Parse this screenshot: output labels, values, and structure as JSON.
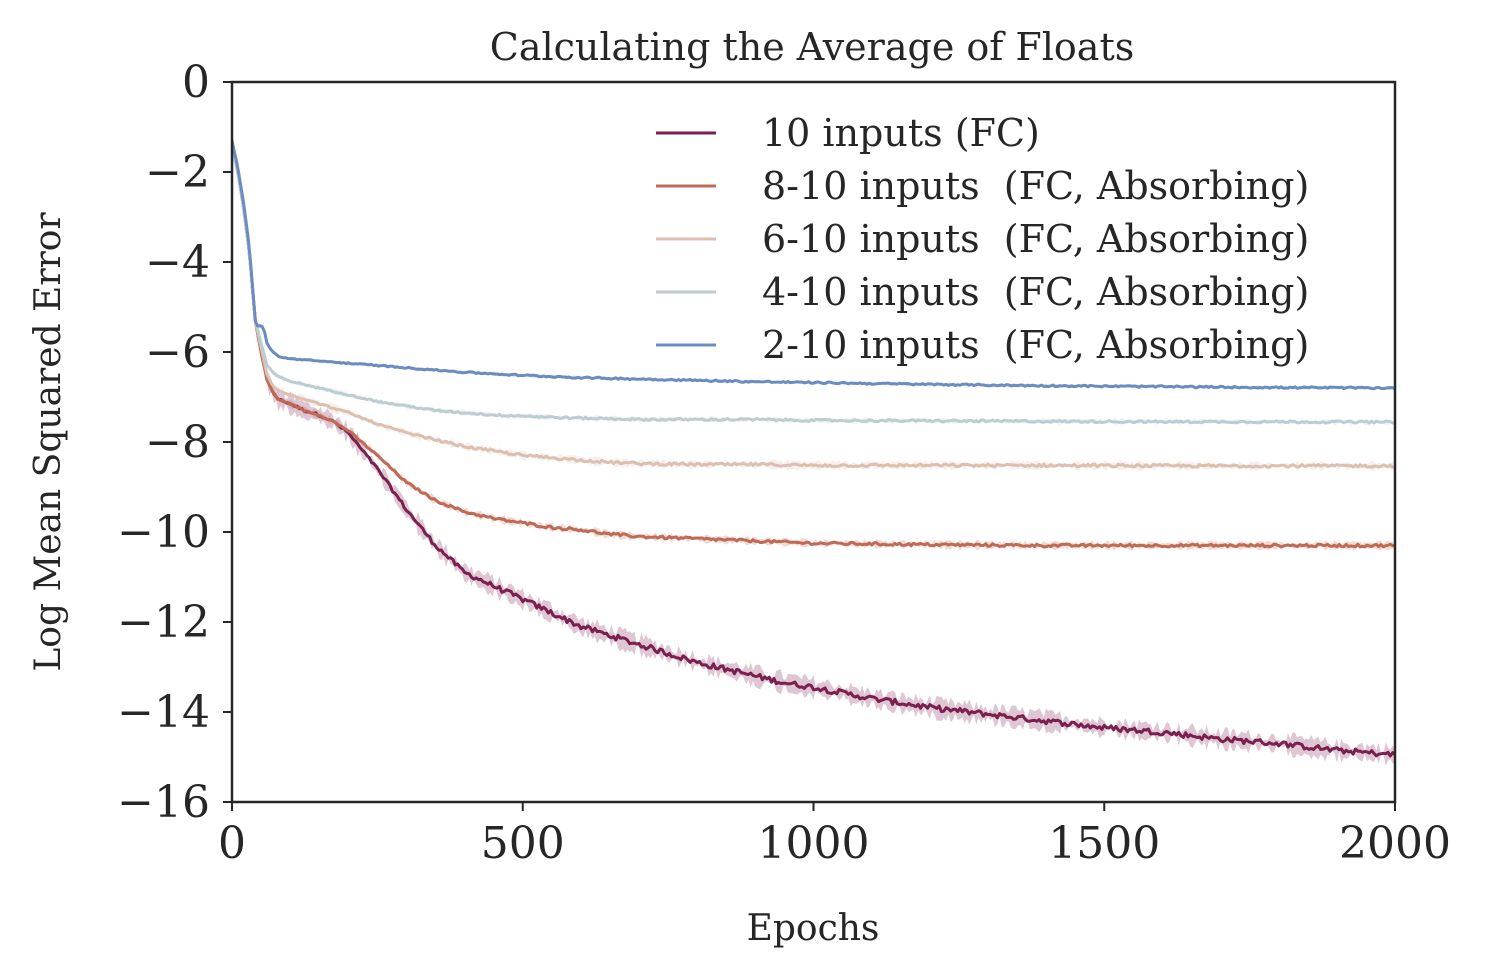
{
  "chart_data": {
    "type": "line",
    "title": "Calculating the Average of Floats",
    "xlabel": "Epochs",
    "ylabel": "Log Mean Squared Error",
    "xlim": [
      0,
      2000
    ],
    "ylim": [
      -16,
      0
    ],
    "xticks": [
      0,
      500,
      1000,
      1500,
      2000
    ],
    "xtick_labels": [
      "0",
      "500",
      "1000",
      "1500",
      "2000"
    ],
    "yticks": [
      0,
      -2,
      -4,
      -6,
      -8,
      -10,
      -12,
      -14,
      -16
    ],
    "ytick_labels": [
      "0",
      "−2",
      "−4",
      "−6",
      "−8",
      "−10",
      "−12",
      "−14",
      "−16"
    ],
    "grid": false,
    "legend_position": "top-right",
    "series": [
      {
        "name": "10 inputs (FC)",
        "color": "#7a1f4e",
        "band_width": 0.3,
        "x": [
          0,
          10,
          20,
          30,
          40,
          50,
          60,
          70,
          80,
          100,
          125,
          150,
          175,
          200,
          250,
          300,
          350,
          400,
          450,
          500,
          550,
          600,
          650,
          700,
          750,
          800,
          850,
          900,
          950,
          1000,
          1100,
          1200,
          1300,
          1400,
          1500,
          1600,
          1700,
          1800,
          1900,
          2000
        ],
        "values": [
          -1.4,
          -2.0,
          -2.8,
          -3.8,
          -5.3,
          -6.0,
          -6.6,
          -6.9,
          -7.05,
          -7.15,
          -7.3,
          -7.4,
          -7.55,
          -7.8,
          -8.6,
          -9.5,
          -10.3,
          -10.9,
          -11.2,
          -11.5,
          -11.8,
          -12.1,
          -12.3,
          -12.5,
          -12.7,
          -12.9,
          -13.05,
          -13.2,
          -13.35,
          -13.45,
          -13.7,
          -13.9,
          -14.05,
          -14.2,
          -14.35,
          -14.45,
          -14.6,
          -14.7,
          -14.85,
          -14.95
        ]
      },
      {
        "name": "8-10 inputs  (FC, Absorbing)",
        "color": "#c06a55",
        "band_width": 0.12,
        "x": [
          0,
          10,
          20,
          30,
          40,
          50,
          60,
          70,
          80,
          100,
          125,
          150,
          175,
          200,
          250,
          300,
          350,
          400,
          450,
          500,
          550,
          600,
          650,
          700,
          800,
          900,
          1000,
          1200,
          1400,
          1600,
          1800,
          2000
        ],
        "values": [
          -1.4,
          -2.0,
          -2.8,
          -3.8,
          -5.3,
          -6.0,
          -6.6,
          -6.9,
          -7.05,
          -7.15,
          -7.3,
          -7.4,
          -7.55,
          -7.75,
          -8.3,
          -8.9,
          -9.3,
          -9.55,
          -9.7,
          -9.8,
          -9.9,
          -9.95,
          -10.05,
          -10.1,
          -10.15,
          -10.2,
          -10.25,
          -10.28,
          -10.3,
          -10.3,
          -10.3,
          -10.3
        ]
      },
      {
        "name": "6-10 inputs  (FC, Absorbing)",
        "color": "#dcbfb1",
        "band_width": 0.12,
        "x": [
          0,
          10,
          20,
          30,
          40,
          50,
          60,
          70,
          80,
          100,
          150,
          200,
          250,
          300,
          350,
          400,
          450,
          500,
          550,
          600,
          650,
          700,
          800,
          900,
          1000,
          1200,
          1400,
          1600,
          1800,
          2000
        ],
        "values": [
          -1.4,
          -2.0,
          -2.8,
          -3.8,
          -5.3,
          -5.9,
          -6.5,
          -6.75,
          -6.85,
          -6.95,
          -7.15,
          -7.35,
          -7.6,
          -7.8,
          -7.95,
          -8.1,
          -8.2,
          -8.3,
          -8.35,
          -8.4,
          -8.45,
          -8.48,
          -8.5,
          -8.5,
          -8.52,
          -8.52,
          -8.52,
          -8.53,
          -8.53,
          -8.53
        ]
      },
      {
        "name": "4-10 inputs  (FC, Absorbing)",
        "color": "#bccdd2",
        "band_width": 0.08,
        "x": [
          0,
          10,
          20,
          30,
          40,
          50,
          60,
          70,
          80,
          100,
          150,
          200,
          250,
          300,
          350,
          400,
          450,
          500,
          550,
          600,
          650,
          700,
          800,
          900,
          1000,
          1200,
          1400,
          1600,
          1800,
          2000
        ],
        "values": [
          -1.4,
          -2.0,
          -2.8,
          -3.8,
          -5.3,
          -5.8,
          -6.3,
          -6.45,
          -6.55,
          -6.65,
          -6.8,
          -6.95,
          -7.1,
          -7.2,
          -7.3,
          -7.35,
          -7.4,
          -7.42,
          -7.45,
          -7.47,
          -7.48,
          -7.5,
          -7.5,
          -7.5,
          -7.52,
          -7.53,
          -7.54,
          -7.55,
          -7.55,
          -7.56
        ]
      },
      {
        "name": "2-10 inputs  (FC, Absorbing)",
        "color": "#6b8cc0",
        "band_width": 0.05,
        "x": [
          0,
          10,
          20,
          30,
          40,
          45,
          50,
          55,
          60,
          70,
          80,
          100,
          150,
          200,
          300,
          400,
          500,
          600,
          700,
          800,
          900,
          1000,
          1200,
          1400,
          1600,
          1800,
          2000
        ],
        "values": [
          -1.3,
          -1.9,
          -2.7,
          -3.7,
          -5.3,
          -5.45,
          -5.4,
          -5.5,
          -5.8,
          -6.0,
          -6.1,
          -6.15,
          -6.2,
          -6.25,
          -6.35,
          -6.45,
          -6.52,
          -6.57,
          -6.6,
          -6.63,
          -6.66,
          -6.68,
          -6.72,
          -6.75,
          -6.77,
          -6.79,
          -6.8
        ]
      }
    ]
  }
}
